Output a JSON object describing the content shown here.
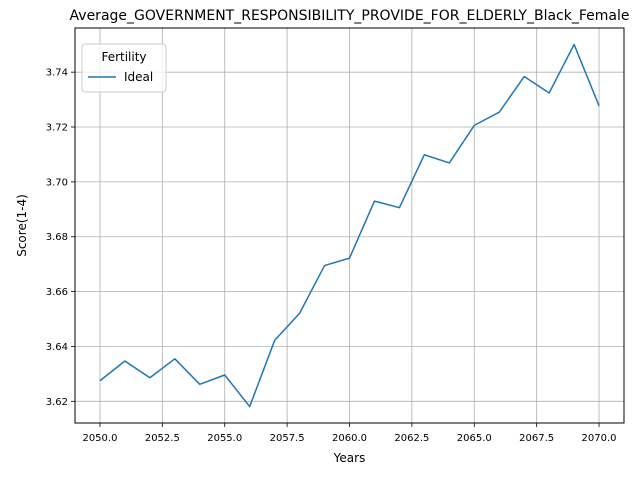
{
  "chart_data": {
    "type": "line",
    "title": "Average_GOVERNMENT_RESPONSIBILITY_PROVIDE_FOR_ELDERLY_Black_Female",
    "xlabel": "Years",
    "ylabel": "Score(1-4)",
    "xlim": [
      2049.0,
      2071.0
    ],
    "ylim": [
      3.6121,
      3.7561
    ],
    "xticks": [
      "2050.0",
      "2052.5",
      "2055.0",
      "2057.5",
      "2060.0",
      "2062.5",
      "2065.0",
      "2067.5",
      "2070.0"
    ],
    "yticks": [
      "3.62",
      "3.64",
      "3.66",
      "3.68",
      "3.70",
      "3.72",
      "3.74"
    ],
    "grid": true,
    "legend": {
      "title": "Fertility",
      "placement": "top-left"
    },
    "series": [
      {
        "name": "Ideal",
        "color": "#1f77b4",
        "x": [
          2050,
          2051,
          2052,
          2053,
          2054,
          2055,
          2056,
          2057,
          2058,
          2059,
          2060,
          2061,
          2062,
          2063,
          2064,
          2065,
          2066,
          2067,
          2068,
          2069,
          2070
        ],
        "y": [
          3.6275,
          3.6347,
          3.6286,
          3.6355,
          3.6262,
          3.6296,
          3.6181,
          3.6422,
          3.6521,
          3.6695,
          3.6722,
          3.693,
          3.6906,
          3.7099,
          3.7069,
          3.7206,
          3.7254,
          3.7384,
          3.7324,
          3.7501,
          3.7277
        ]
      }
    ]
  }
}
